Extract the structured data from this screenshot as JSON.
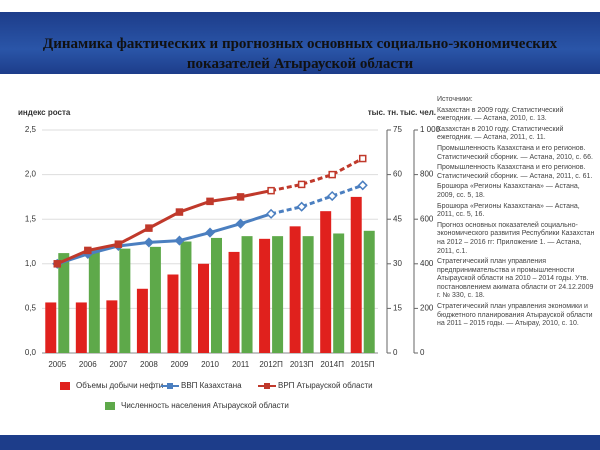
{
  "chart_data": {
    "type": "combo",
    "title": "Динамика фактических и прогнозных основных социально-экономических показателей Атырауской области",
    "y_label": "индекс роста",
    "y2_label": "тыс. тн.",
    "y3_label": "тыс. чел.",
    "categories": [
      "2005",
      "2006",
      "2007",
      "2008",
      "2009",
      "2010",
      "2011",
      "2012П",
      "2013П",
      "2014П",
      "2015П"
    ],
    "forecast_from": 7,
    "ylim": [
      0,
      2.5
    ],
    "yticks": [
      {
        "value": 0,
        "label": "0,0"
      },
      {
        "value": 0.5,
        "label": "0,5"
      },
      {
        "value": 1,
        "label": "1,0"
      },
      {
        "value": 1.5,
        "label": "1,5"
      },
      {
        "value": 2,
        "label": "2,0"
      },
      {
        "value": 2.5,
        "label": "2,5"
      }
    ],
    "y2lim": [
      0,
      75
    ],
    "y2ticks": [
      0,
      15,
      30,
      45,
      60,
      75
    ],
    "y3lim": [
      0,
      1000
    ],
    "y3ticks": [
      0,
      200,
      400,
      600,
      800,
      {
        "value": 1000,
        "label": "1 000"
      }
    ],
    "grid": true,
    "series": [
      {
        "name": "Объемы добычи нефти",
        "kind": "bar",
        "axis": "y2",
        "color": "#e0211d",
        "values": [
          17,
          17,
          17.7,
          21.6,
          26.4,
          30,
          34,
          38.4,
          42.6,
          47.7,
          52.5
        ]
      },
      {
        "name": "ВВП Казахстана",
        "kind": "line",
        "marker": "diamond",
        "axis": "y",
        "color": "#4b7fc0",
        "values": [
          1.0,
          1.11,
          1.2,
          1.24,
          1.26,
          1.35,
          1.45,
          1.56,
          1.64,
          1.76,
          1.88
        ]
      },
      {
        "name": "ВРП Атырауской области",
        "kind": "line",
        "marker": "square",
        "axis": "y",
        "color": "#c0392b",
        "values": [
          1.0,
          1.15,
          1.22,
          1.4,
          1.58,
          1.7,
          1.75,
          1.82,
          1.89,
          2.0,
          2.18
        ]
      },
      {
        "name": "Численность населения Атырауской области",
        "kind": "bar",
        "axis": "y3",
        "color": "#5ea94a",
        "values": [
          448,
          464,
          468,
          476,
          500,
          516,
          524,
          524,
          524,
          536,
          548
        ]
      }
    ],
    "sources": [
      "Источники:",
      "Казахстан в 2009 году. Статистический ежегодник. — Астана, 2010, с. 13.",
      "Казахстан в 2010 году. Статистический ежегодник. — Астана, 2011, с. 11.",
      "Промышленность Казахстана и его регионов. Статистический сборник. — Астана, 2010, с. 66.",
      "Промышленность Казахстана и его регионов. Статистический сборник. — Астана, 2011, с. 61.",
      "Брошюра «Регионы Казахстана» — Астана, 2009, сс. 5, 18.",
      "Брошюра «Регионы Казахстана» — Астана, 2011, сс. 5, 16.",
      "Прогноз основных показателей социально-экономического развития Республики Казахстан на 2012 – 2016 гг: Приложение 1. — Астана, 2011, с.1.",
      "Стратегический план управления предпринимательства и промышленности Атырауской области на 2010 – 2014 годы. Утв. постановлением акимата области от 24.12.2009 г. № 330, с. 18.",
      "Стратегический план управления экономики и бюджетного планирования Атырауской области на 2011 – 2015 годы. — Атырау, 2010, с. 10."
    ]
  }
}
